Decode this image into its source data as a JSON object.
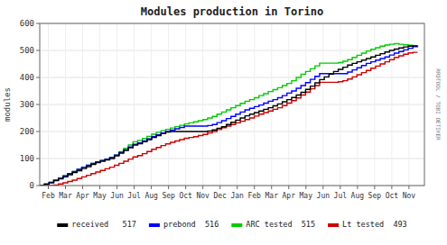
{
  "chart_data": {
    "type": "line",
    "line_style": "steps",
    "title": "Modules production in Torino",
    "ylabel": "modules",
    "annotation": "RRDTOOL / TOBI OETIKER",
    "grid": true,
    "legend": "bottom",
    "xlim": [
      0,
      22.4
    ],
    "xticks": [
      {
        "value": 0.5,
        "label": "Feb"
      },
      {
        "value": 1.5,
        "label": "Mar"
      },
      {
        "value": 2.5,
        "label": "Apr"
      },
      {
        "value": 3.5,
        "label": "May"
      },
      {
        "value": 4.5,
        "label": "Jun"
      },
      {
        "value": 5.5,
        "label": "Jul"
      },
      {
        "value": 6.5,
        "label": "Aug"
      },
      {
        "value": 7.5,
        "label": "Sep"
      },
      {
        "value": 8.5,
        "label": "Oct"
      },
      {
        "value": 9.5,
        "label": "Nov"
      },
      {
        "value": 10.5,
        "label": "Dec"
      },
      {
        "value": 11.5,
        "label": "Jan"
      },
      {
        "value": 12.5,
        "label": "Feb"
      },
      {
        "value": 13.5,
        "label": "Mar"
      },
      {
        "value": 14.5,
        "label": "Apr"
      },
      {
        "value": 15.5,
        "label": "May"
      },
      {
        "value": 16.5,
        "label": "Jun"
      },
      {
        "value": 17.5,
        "label": "Jul"
      },
      {
        "value": 18.5,
        "label": "Aug"
      },
      {
        "value": 19.5,
        "label": "Sep"
      },
      {
        "value": 20.5,
        "label": "Oct"
      },
      {
        "value": 21.5,
        "label": "Nov"
      }
    ],
    "ylim": [
      0,
      600
    ],
    "yticks": [
      0,
      100,
      200,
      300,
      400,
      500,
      600
    ],
    "x": [
      0,
      0.271605,
      0.54321,
      0.814815,
      1.08642,
      1.358025,
      1.62963,
      1.901235,
      2.17284,
      2.444444,
      2.716049,
      2.987654,
      3.259259,
      3.530864,
      3.802469,
      4.074074,
      4.345679,
      4.617284,
      4.888889,
      5.160494,
      5.432099,
      5.703704,
      5.975309,
      6.246914,
      6.518519,
      6.790123,
      7.061728,
      7.333333,
      7.604938,
      7.876543,
      8.148148,
      8.419753,
      8.691358,
      8.962963,
      9.234568,
      9.506173,
      9.777778,
      10.049383,
      10.320988,
      10.592593,
      10.864198,
      11.135802,
      11.407407,
      11.679012,
      11.950617,
      12.222222,
      12.493827,
      12.765432,
      13.037037,
      13.308642,
      13.580247,
      13.851852,
      14.123457,
      14.395062,
      14.666667,
      14.938272,
      15.209877,
      15.481481,
      15.753086,
      16.024691,
      16.296296,
      16.567901,
      16.839506,
      17.111111,
      17.382716,
      17.654321,
      17.925926,
      18.197531,
      18.469136,
      18.740741,
      19.012346,
      19.283951,
      19.555556,
      19.82716,
      20.098765,
      20.37037,
      20.641975,
      20.91358,
      21.185185,
      21.45679,
      21.728395,
      22
    ],
    "series": [
      {
        "name": "received   517",
        "color": "#000000",
        "values": [
          0,
          5,
          10,
          18,
          25,
          32,
          40,
          48,
          55,
          63,
          70,
          78,
          85,
          90,
          95,
          100,
          110,
          120,
          130,
          140,
          150,
          155,
          162,
          170,
          178,
          185,
          192,
          198,
          200,
          200,
          200,
          200,
          200,
          200,
          200,
          200,
          202,
          206,
          212,
          218,
          226,
          234,
          242,
          250,
          258,
          264,
          270,
          276,
          282,
          288,
          295,
          302,
          310,
          318,
          326,
          335,
          345,
          356,
          368,
          380,
          392,
          402,
          412,
          422,
          430,
          438,
          446,
          452,
          458,
          464,
          470,
          476,
          482,
          488,
          494,
          500,
          505,
          509,
          513,
          516,
          517,
          517
        ]
      },
      {
        "name": "prebond  516",
        "color": "#0000ff",
        "values": [
          0,
          5,
          12,
          20,
          28,
          36,
          44,
          52,
          60,
          68,
          75,
          82,
          88,
          93,
          98,
          104,
          113,
          123,
          133,
          143,
          153,
          158,
          165,
          173,
          181,
          188,
          194,
          200,
          205,
          210,
          215,
          220,
          220,
          220,
          220,
          220,
          222,
          226,
          233,
          240,
          248,
          256,
          264,
          272,
          280,
          286,
          292,
          298,
          305,
          312,
          318,
          325,
          333,
          342,
          350,
          360,
          370,
          381,
          393,
          404,
          414,
          414,
          414,
          414,
          414,
          414,
          420,
          428,
          436,
          444,
          452,
          458,
          464,
          470,
          476,
          483,
          490,
          496,
          502,
          508,
          514,
          516
        ]
      },
      {
        "name": "ARC tested  515",
        "color": "#00cc00",
        "values": [
          0,
          5,
          12,
          20,
          28,
          36,
          44,
          52,
          60,
          68,
          75,
          82,
          88,
          93,
          98,
          104,
          113,
          125,
          138,
          150,
          162,
          167,
          174,
          182,
          190,
          197,
          203,
          208,
          213,
          218,
          223,
          228,
          232,
          236,
          240,
          244,
          250,
          256,
          264,
          272,
          280,
          288,
          296,
          304,
          312,
          318,
          325,
          333,
          340,
          348,
          355,
          362,
          370,
          378,
          388,
          400,
          412,
          422,
          432,
          443,
          453,
          453,
          453,
          453,
          455,
          460,
          466,
          474,
          482,
          490,
          498,
          504,
          510,
          516,
          520,
          523,
          525,
          523,
          521,
          519,
          517,
          515
        ]
      },
      {
        "name": "Lt tested  493",
        "color": "#cc0000",
        "values": [
          0,
          0,
          0,
          2,
          6,
          10,
          15,
          20,
          26,
          32,
          38,
          44,
          50,
          56,
          62,
          68,
          75,
          82,
          90,
          98,
          106,
          111,
          118,
          126,
          134,
          141,
          148,
          154,
          160,
          165,
          170,
          175,
          178,
          181,
          185,
          189,
          195,
          200,
          207,
          214,
          220,
          226,
          232,
          238,
          244,
          250,
          257,
          264,
          270,
          276,
          282,
          288,
          296,
          305,
          314,
          324,
          335,
          346,
          358,
          370,
          382,
          382,
          382,
          382,
          384,
          388,
          394,
          402,
          410,
          418,
          426,
          434,
          442,
          450,
          458,
          466,
          474,
          480,
          486,
          491,
          493,
          493
        ]
      }
    ]
  }
}
